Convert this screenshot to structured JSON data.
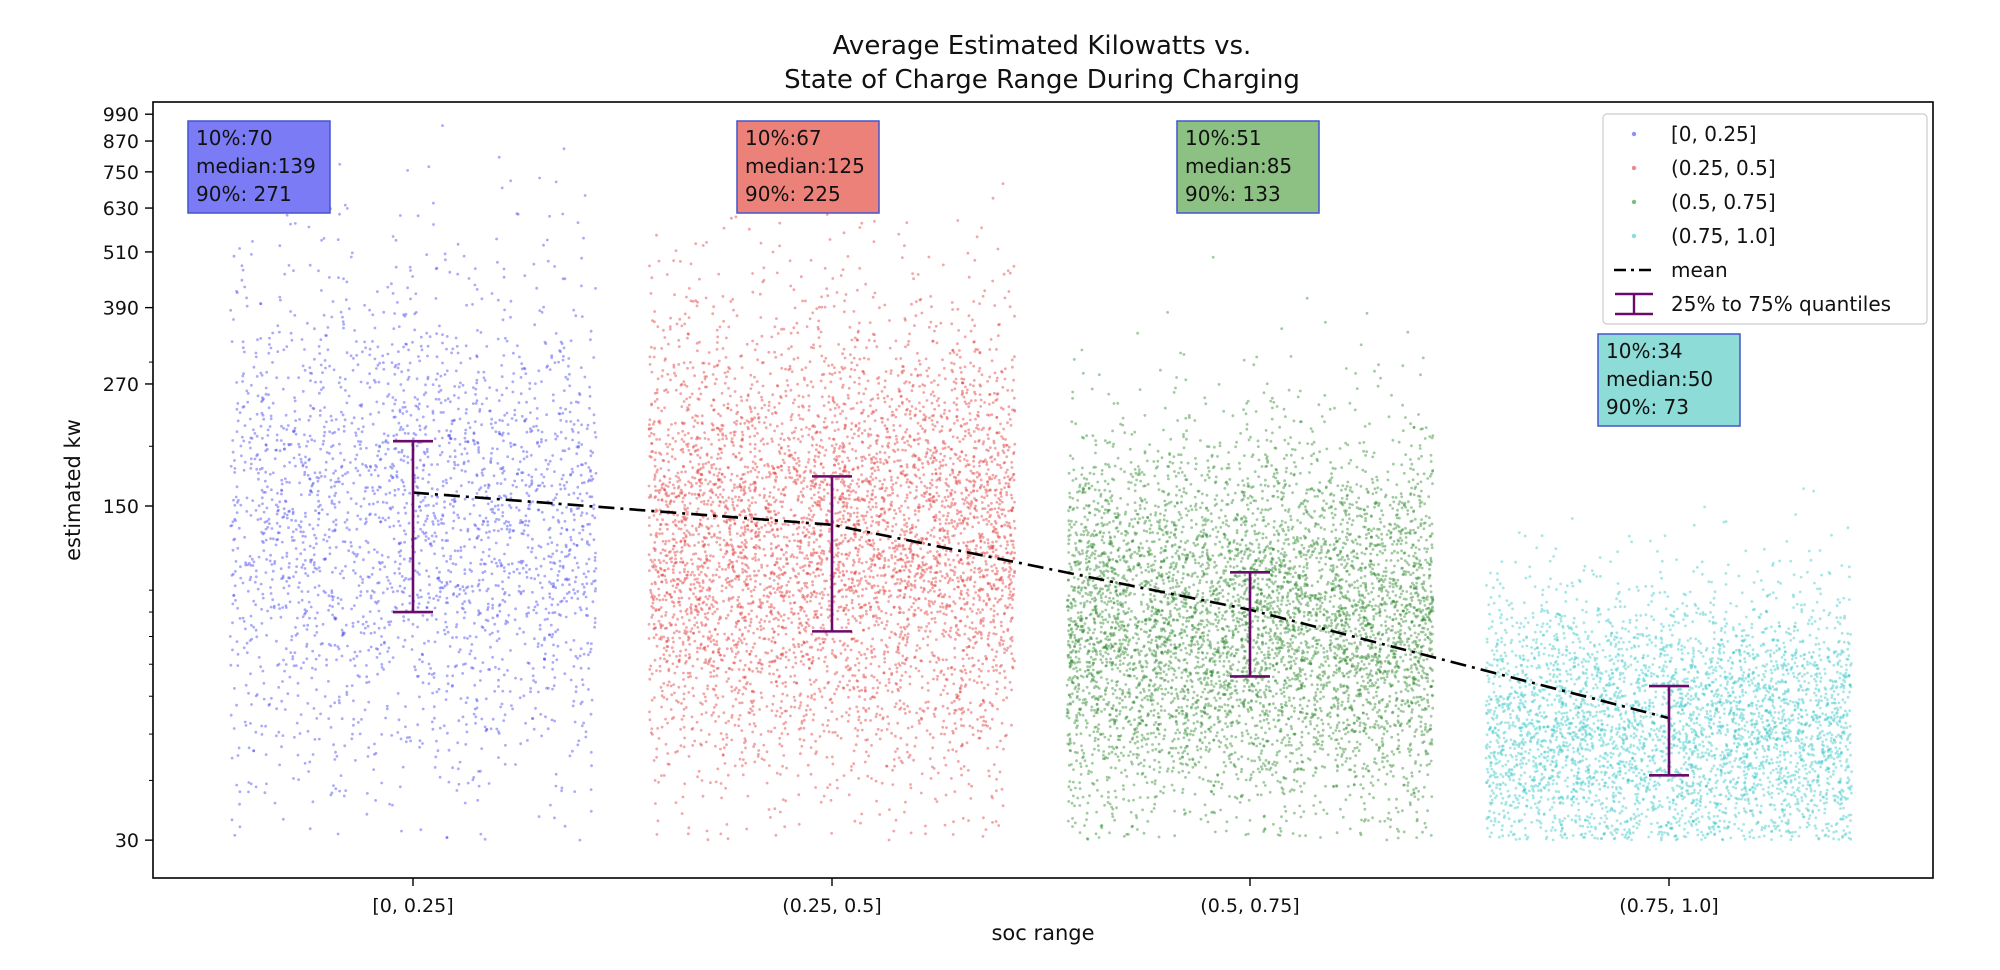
{
  "chart_data": {
    "type": "scatter",
    "title": "Average Estimated Kilowatts vs.\nState of Charge Range During Charging",
    "title_lines": [
      "Average Estimated Kilowatts vs.",
      "State of Charge Range During Charging"
    ],
    "xlabel": "soc range",
    "ylabel": "estimated kw",
    "yscale": "log",
    "ylim": [
      25,
      1050
    ],
    "yticks": [
      30,
      150,
      270,
      390,
      510,
      630,
      750,
      870,
      990
    ],
    "ytick_labels": [
      "30",
      "150",
      "270",
      "390",
      "510",
      "630",
      "750",
      "870",
      "990"
    ],
    "categories": [
      "[0, 0.25]",
      "(0.25, 0.5]",
      "(0.5, 0.75]",
      "(0.75, 1.0]"
    ],
    "series": [
      {
        "name": "[0, 0.25]",
        "color": "#4444ee",
        "mean": 160,
        "q25": 90,
        "q75": 205,
        "stats_lines": [
          "10%:70",
          "median:139",
          "90%: 271"
        ],
        "stats_box_color": "#7b7bf5"
      },
      {
        "name": "(0.25, 0.5]",
        "color": "#e03b3b",
        "mean": 137,
        "q25": 82,
        "q75": 173,
        "stats_lines": [
          "10%:67",
          "median:125",
          "90%: 225"
        ],
        "stats_box_color": "#ec8179"
      },
      {
        "name": "(0.5, 0.75]",
        "color": "#2e8a2e",
        "mean": 91,
        "q25": 66,
        "q75": 109,
        "stats_lines": [
          "10%:51",
          "median:85",
          "90%: 133"
        ],
        "stats_box_color": "#8dc083"
      },
      {
        "name": "(0.75, 1.0]",
        "color": "#3ec7c7",
        "mean": 54,
        "q25": 41,
        "q75": 63,
        "stats_lines": [
          "10%:34",
          "median:50",
          "90%: 73"
        ],
        "stats_box_color": "#8ddcd8"
      }
    ],
    "mean_line": {
      "name": "mean",
      "color": "#000000",
      "style": "dashdot"
    },
    "quantile_bars": {
      "name": "25% to 75% quantiles",
      "color": "#6a0a6a"
    },
    "legend": {
      "placement": "top-right",
      "entries": [
        "[0, 0.25]",
        "(0.25, 0.5]",
        "(0.5, 0.75]",
        "(0.75, 1.0]",
        "mean",
        "25% to 75% quantiles"
      ]
    },
    "grid": false
  }
}
